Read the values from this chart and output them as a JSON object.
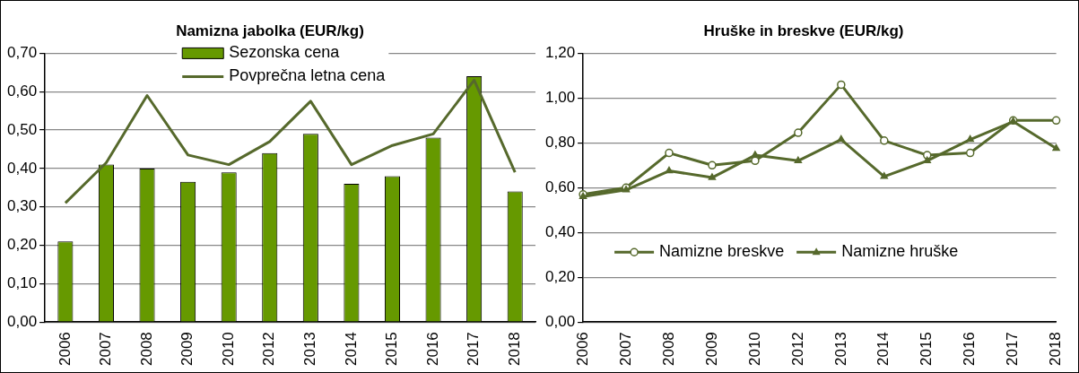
{
  "chart_data": [
    {
      "type": "bar",
      "title": "Namizna jabolka (EUR/kg)",
      "categories": [
        "2006",
        "2007",
        "2008",
        "2009",
        "2010",
        "2012",
        "2013",
        "2014",
        "2015",
        "2016",
        "2017",
        "2018"
      ],
      "series": [
        {
          "name": "Sezonska cena",
          "color": "#669900",
          "values": [
            0.21,
            0.41,
            0.4,
            0.365,
            0.39,
            0.44,
            0.49,
            0.36,
            0.38,
            0.48,
            0.64,
            0.34
          ]
        },
        {
          "name": "Povprečna letna cena",
          "type": "line",
          "color": "#56692c",
          "marker": "none",
          "values": [
            0.31,
            0.415,
            0.59,
            0.435,
            0.41,
            0.47,
            0.575,
            0.41,
            0.46,
            0.49,
            0.63,
            0.39
          ]
        }
      ],
      "ylim": [
        0,
        0.7
      ],
      "yticks": [
        {
          "value": 0,
          "label": "0,00"
        },
        {
          "value": 0.1,
          "label": "0,10"
        },
        {
          "value": 0.2,
          "label": "0,20"
        },
        {
          "value": 0.3,
          "label": "0,30"
        },
        {
          "value": 0.4,
          "label": "0,40"
        },
        {
          "value": 0.5,
          "label": "0,50"
        },
        {
          "value": 0.6,
          "label": "0,60"
        },
        {
          "value": 0.7,
          "label": "0,70"
        }
      ],
      "grid": "y",
      "legend": "top"
    },
    {
      "type": "line",
      "title": "Hruške in breskve (EUR/kg)",
      "categories": [
        "2006",
        "2007",
        "2008",
        "2009",
        "2010",
        "2012",
        "2013",
        "2014",
        "2015",
        "2016",
        "2017",
        "2018"
      ],
      "series": [
        {
          "name": "Namizne breskve",
          "color": "#56692c",
          "marker": "circle",
          "values": [
            0.57,
            0.6,
            0.755,
            0.7,
            0.72,
            0.845,
            1.06,
            0.81,
            0.745,
            0.755,
            0.9,
            0.9
          ]
        },
        {
          "name": "Namizne hruške",
          "color": "#56692c",
          "marker": "triangle",
          "values": [
            0.56,
            0.59,
            0.675,
            0.645,
            0.745,
            0.72,
            0.815,
            0.65,
            0.72,
            0.815,
            0.895,
            0.775
          ]
        }
      ],
      "ylim": [
        0,
        1.2
      ],
      "yticks": [
        {
          "value": 0,
          "label": "0,00"
        },
        {
          "value": 0.2,
          "label": "0,20"
        },
        {
          "value": 0.4,
          "label": "0,40"
        },
        {
          "value": 0.6,
          "label": "0,60"
        },
        {
          "value": 0.8,
          "label": "0,80"
        },
        {
          "value": 1.0,
          "label": "1,00"
        },
        {
          "value": 1.2,
          "label": "1,20"
        }
      ],
      "grid": "y",
      "legend": "bottom"
    }
  ]
}
